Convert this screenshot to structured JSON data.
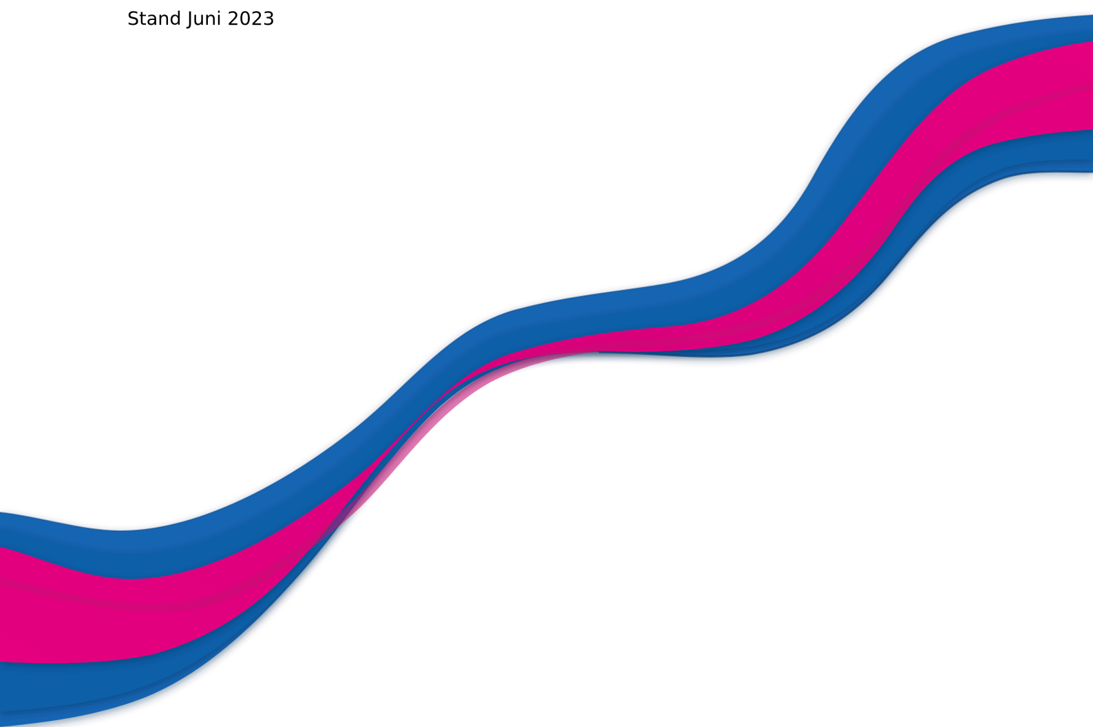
{
  "document": {
    "date_line": "Stand Juni 2023"
  },
  "colors": {
    "blue_light": "#1565b3",
    "blue_mid": "#0f5ea8",
    "blue_dark": "#0b4a8a",
    "magenta": "#e4007f",
    "magenta_dark": "#c80f72",
    "background": "#ffffff"
  }
}
